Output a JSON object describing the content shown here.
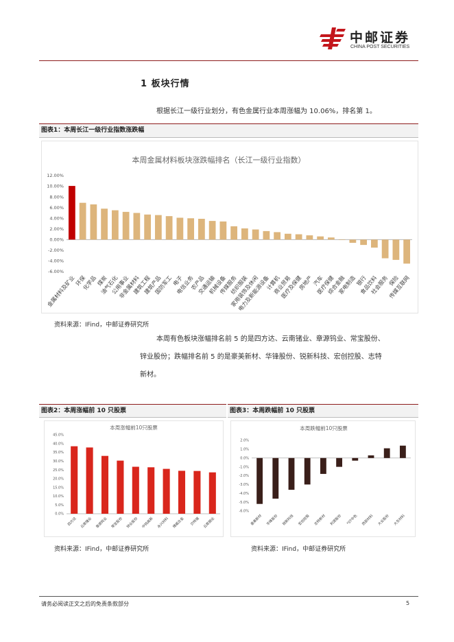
{
  "header": {
    "logo_name": "中邮证券",
    "logo_en": "CHINA POST SECURITIES",
    "colors": {
      "brand_red": "#c4161c",
      "rule": "#8c1a1a"
    }
  },
  "section": {
    "title": "1  板块行情"
  },
  "paragraphs": {
    "p1": "根据长江一级行业划分，有色金属行业本周涨幅为 10.06%，排名第 1。",
    "p2_line1": "本周有色板块涨幅排名前 5 的是四方达、云南锗业、章源钨业、常宝股份、",
    "p2_line2": "锌业股份；跌幅排名前 5 的是豪美新材、华锋股份、锐新科技、宏创控股、志特",
    "p2_line3": "新材。"
  },
  "figures": {
    "fig1_caption": "图表1：本周长江一级行业指数涨跌幅",
    "fig2_caption": "图表2：本周涨幅前 10 只股票",
    "fig3_caption": "图表3：本周跌幅前 10 只股票",
    "source1": "资料来源：IFind，中邮证券研究所",
    "source2": "资料来源：IFind，中邮证券研究所",
    "source3": "资料来源：IFind，中邮证券研究所"
  },
  "footer": {
    "disclaimer": "请务必阅读正文之后的免责条款部分",
    "page": "5"
  },
  "chart_data": [
    {
      "type": "bar",
      "title": "本周金属材料板块涨跌幅排名（长江一级行业指数）",
      "categories": [
        "金属材料及矿业",
        "环保",
        "化学品",
        "煤炭",
        "油气石化",
        "公用事业",
        "非金属材料",
        "建筑工程",
        "建筑产品",
        "国防军工",
        "电子",
        "电信业务",
        "农产品",
        "交通运输",
        "机械设备",
        "传媒服务",
        "纺织服装",
        "家用装饰及休闲",
        "电力及新能源设备",
        "计算机",
        "商业贸易",
        "医疗及保健",
        "房地产",
        "汽车",
        "医疗保健",
        "综合金融",
        "家电制造",
        "银行",
        "食品饮料",
        "社会服务",
        "保险",
        "传媒互联网"
      ],
      "values": [
        10.06,
        6.9,
        6.6,
        5.8,
        5.5,
        5.2,
        5.0,
        4.7,
        4.6,
        4.4,
        4.1,
        4.0,
        3.9,
        3.5,
        3.4,
        2.5,
        2.1,
        1.9,
        1.6,
        1.4,
        1.1,
        1.0,
        0.8,
        0.6,
        0.4,
        0.0,
        -0.6,
        -1.0,
        -1.5,
        -3.5,
        -3.8,
        -4.5
      ],
      "highlight_index": 0,
      "colors": {
        "highlight": "#c00000",
        "bar": "#ddb57c"
      },
      "y_ticks": [
        "12.00%",
        "10.00%",
        "8.00%",
        "6.00%",
        "4.00%",
        "2.00%",
        "0.00%",
        "-2.00%",
        "-4.00%",
        "-6.00%"
      ],
      "ylim": [
        -6,
        12
      ]
    },
    {
      "type": "bar",
      "title": "本周涨幅前10只股票",
      "categories": [
        "四方达",
        "云南锗业",
        "章源钨业",
        "常宝股份",
        "锌业股份",
        "中钨高新",
        "永兴材料",
        "博威合金",
        "贝特瑞",
        "云南铜业"
      ],
      "values": [
        38.5,
        37.8,
        33.0,
        30.3,
        26.8,
        26.5,
        25.6,
        24.5,
        24.4,
        23.6
      ],
      "colors": {
        "bar": "#d9261c"
      },
      "y_ticks": [
        "45.0%",
        "40.0%",
        "35.0%",
        "30.0%",
        "25.0%",
        "20.0%",
        "15.0%",
        "10.0%",
        "5.0%",
        "0.0%"
      ],
      "ylim": [
        0,
        45
      ]
    },
    {
      "type": "bar",
      "title": "本周跌幅前10只股票",
      "categories": [
        "豪美新材",
        "华锋股份",
        "锐新科技",
        "宏创控股",
        "志特新材",
        "利源股份",
        "*ST中色",
        "西部材料",
        "大业股份",
        "大东材料"
      ],
      "values": [
        -5.2,
        -4.6,
        -3.6,
        -3.0,
        -1.8,
        -1.0,
        -0.3,
        0.3,
        1.1,
        1.4
      ],
      "colors": {
        "bar": "#3a1f1a"
      },
      "y_ticks": [
        "2.0%",
        "1.0%",
        "0.0%",
        "-1.0%",
        "-2.0%",
        "-3.0%",
        "-4.0%",
        "-5.0%",
        "-6.0%"
      ],
      "ylim": [
        -6,
        2
      ]
    }
  ]
}
